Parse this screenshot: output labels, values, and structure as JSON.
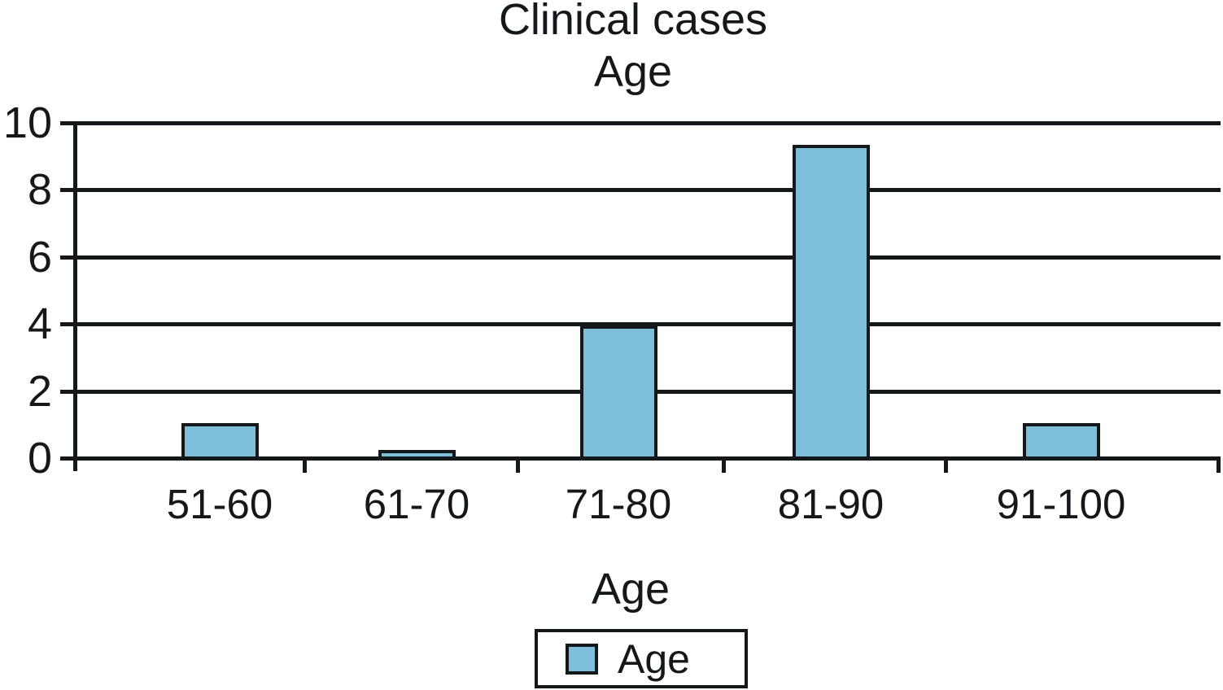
{
  "chart_data": {
    "type": "bar",
    "title": "Clinical cases",
    "subtitle": "Age",
    "categories": [
      "51-60",
      "61-70",
      "71-80",
      "81-90",
      "91-100"
    ],
    "series": [
      {
        "name": "Age",
        "values": [
          1,
          0.2,
          3.9,
          9.3,
          1
        ]
      }
    ],
    "xlabel": "Age",
    "ylabel": "",
    "ylim": [
      0,
      10
    ],
    "yticks": [
      0,
      2,
      4,
      6,
      8,
      10
    ],
    "grid": "horizontal",
    "legend_position": "bottom",
    "bar_color": "#7ec0db",
    "line_color": "#14181b",
    "background_color": "#ffffff"
  },
  "legend": {
    "items": [
      {
        "label": "Age",
        "color": "#7ec0db"
      }
    ]
  }
}
